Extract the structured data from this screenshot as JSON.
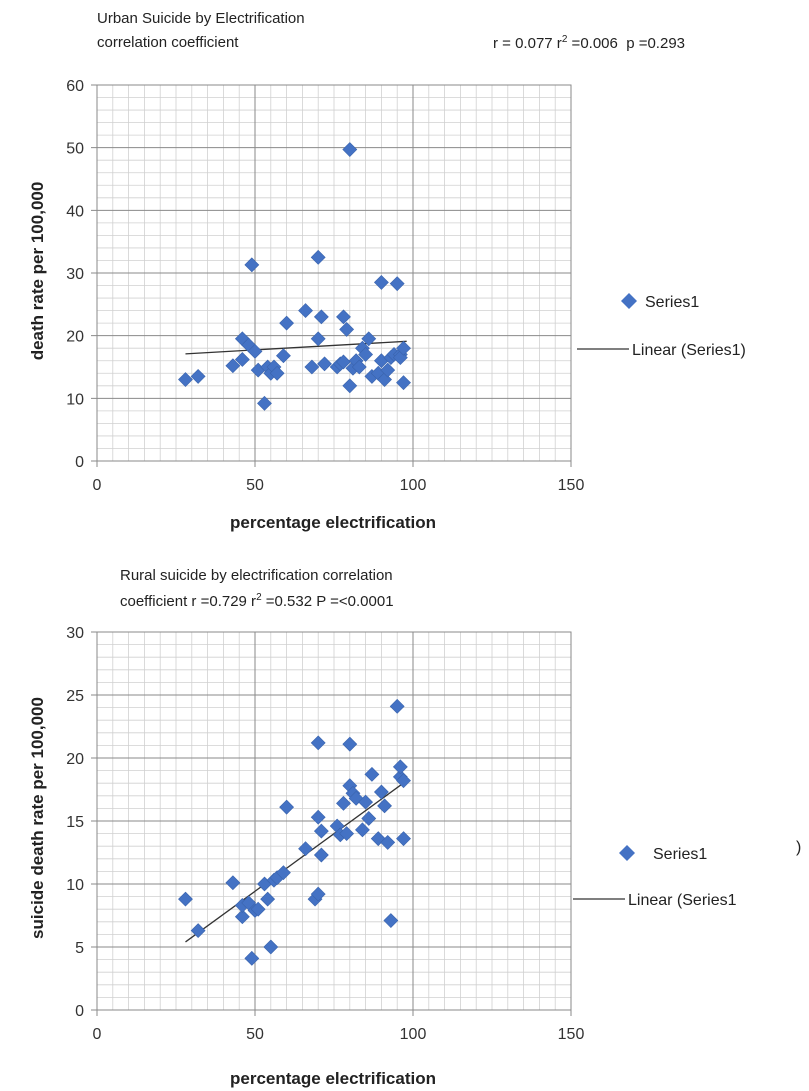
{
  "chart_data": [
    {
      "type": "scatter",
      "title_line1": "Urban Suicide by Electrification",
      "title_line2": "correlation coefficient",
      "stats": {
        "r": "0.077",
        "r2": "0.006",
        "p": "0.293"
      },
      "xlabel": "percentage electrification",
      "ylabel": "death rate per 100,000",
      "xlim": [
        0,
        150
      ],
      "ylim": [
        0,
        60
      ],
      "x_ticks": [
        0,
        50,
        100,
        150
      ],
      "y_ticks": [
        0,
        10,
        20,
        30,
        40,
        50,
        60
      ],
      "grid": true,
      "legend_position": "right",
      "marker_color": "#4472c4",
      "trend_color": "#333333",
      "series": [
        {
          "name": "Series1",
          "points": [
            [
              28,
              13
            ],
            [
              32,
              13.5
            ],
            [
              43,
              15.2
            ],
            [
              46,
              16.2
            ],
            [
              46,
              19.5
            ],
            [
              48,
              18.5
            ],
            [
              49,
              31.3
            ],
            [
              50,
              17.5
            ],
            [
              51,
              14.5
            ],
            [
              53,
              9.2
            ],
            [
              54,
              15
            ],
            [
              55,
              14
            ],
            [
              56,
              15
            ],
            [
              57,
              14
            ],
            [
              59,
              16.8
            ],
            [
              60,
              22
            ],
            [
              66,
              24
            ],
            [
              68,
              15
            ],
            [
              70,
              19.5
            ],
            [
              70,
              32.5
            ],
            [
              71,
              23
            ],
            [
              72,
              15.5
            ],
            [
              76,
              15
            ],
            [
              77,
              15.5
            ],
            [
              78,
              23
            ],
            [
              78,
              15.8
            ],
            [
              79,
              21
            ],
            [
              80,
              12
            ],
            [
              80,
              49.7
            ],
            [
              81,
              14.8
            ],
            [
              82,
              16
            ],
            [
              83,
              15
            ],
            [
              84,
              18
            ],
            [
              85,
              17
            ],
            [
              86,
              19.5
            ],
            [
              87,
              13.5
            ],
            [
              89,
              14
            ],
            [
              90,
              16
            ],
            [
              90,
              28.5
            ],
            [
              91,
              13
            ],
            [
              92,
              14.5
            ],
            [
              93,
              16.5
            ],
            [
              94,
              17
            ],
            [
              95,
              28.3
            ],
            [
              96,
              17
            ],
            [
              96,
              16.5
            ],
            [
              97,
              18
            ],
            [
              97,
              12.5
            ]
          ]
        }
      ],
      "trendline": {
        "name": "Linear (Series1)",
        "x": [
          28,
          98
        ],
        "y": [
          17.1,
          19.1
        ]
      }
    },
    {
      "type": "scatter",
      "title_line1": "Rural suicide by electrification correlation",
      "title_line2_prefix": "coefficient r =0.729 r",
      "title_line2_sup": "2",
      "title_line2_suffix": " =0.532 P =<0.0001",
      "xlabel": "percentage electrification",
      "ylabel": "suicide death rate per 100,000",
      "xlim": [
        0,
        150
      ],
      "ylim": [
        0,
        30
      ],
      "x_ticks": [
        0,
        50,
        100,
        150
      ],
      "y_ticks": [
        0,
        5,
        10,
        15,
        20,
        25,
        30
      ],
      "grid": true,
      "legend_position": "right",
      "stray_mark": ")",
      "marker_color": "#4472c4",
      "trend_color": "#333333",
      "series": [
        {
          "name": "Series1",
          "points": [
            [
              28,
              8.8
            ],
            [
              32,
              6.3
            ],
            [
              43,
              10.1
            ],
            [
              46,
              7.4
            ],
            [
              46,
              8.3
            ],
            [
              48,
              8.5
            ],
            [
              49,
              4.1
            ],
            [
              50,
              7.9
            ],
            [
              51,
              8
            ],
            [
              53,
              10
            ],
            [
              54,
              8.8
            ],
            [
              55,
              5
            ],
            [
              56,
              10.3
            ],
            [
              57,
              10.5
            ],
            [
              59,
              10.9
            ],
            [
              60,
              16.1
            ],
            [
              66,
              12.8
            ],
            [
              69,
              8.8
            ],
            [
              70,
              9.2
            ],
            [
              70,
              21.2
            ],
            [
              70,
              15.3
            ],
            [
              71,
              14.2
            ],
            [
              71,
              12.3
            ],
            [
              76,
              14.6
            ],
            [
              77,
              13.9
            ],
            [
              78,
              16.4
            ],
            [
              79,
              14
            ],
            [
              80,
              17.8
            ],
            [
              80,
              21.1
            ],
            [
              81,
              17.2
            ],
            [
              82,
              16.8
            ],
            [
              84,
              14.3
            ],
            [
              85,
              16.5
            ],
            [
              86,
              15.2
            ],
            [
              87,
              18.7
            ],
            [
              89,
              13.6
            ],
            [
              90,
              17.3
            ],
            [
              91,
              16.2
            ],
            [
              92,
              13.3
            ],
            [
              93,
              7.1
            ],
            [
              95,
              24.1
            ],
            [
              96,
              18.5
            ],
            [
              96,
              19.3
            ],
            [
              97,
              18.2
            ],
            [
              97,
              13.6
            ]
          ]
        }
      ],
      "trendline": {
        "name": "Linear (Series1",
        "x": [
          28,
          98
        ],
        "y": [
          5.4,
          18.2
        ]
      }
    }
  ]
}
